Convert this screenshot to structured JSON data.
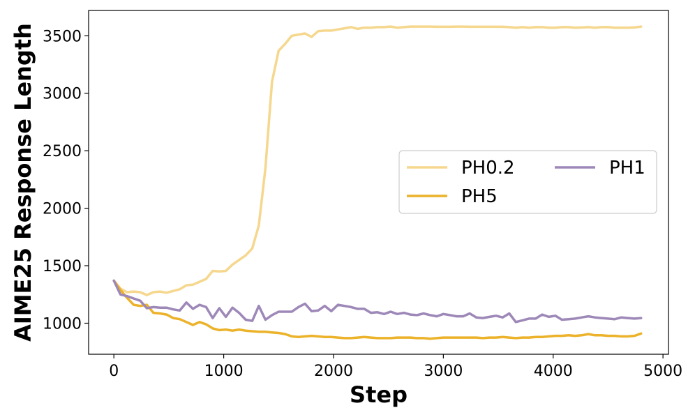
{
  "chart_data": {
    "type": "line",
    "title": "",
    "xlabel": "Step",
    "ylabel": "AIME25 Response Length",
    "xlim": [
      -230,
      5050
    ],
    "ylim": [
      730,
      3720
    ],
    "x_ticks": [
      0,
      1000,
      2000,
      3000,
      4000,
      5000
    ],
    "y_ticks": [
      1000,
      1500,
      2000,
      2500,
      3000,
      3500
    ],
    "grid": false,
    "legend": {
      "placement": "center-right",
      "columns": 2
    },
    "series": [
      {
        "name": "PH0.2",
        "color": "#f5d78e",
        "x": [
          0,
          60,
          120,
          180,
          240,
          300,
          360,
          420,
          480,
          540,
          600,
          660,
          720,
          780,
          840,
          900,
          960,
          1020,
          1080,
          1140,
          1200,
          1260,
          1320,
          1380,
          1440,
          1500,
          1560,
          1620,
          1680,
          1740,
          1800,
          1860,
          1920,
          1980,
          2040,
          2100,
          2160,
          2220,
          2280,
          2340,
          2400,
          2460,
          2520,
          2580,
          2640,
          2700,
          2760,
          2820,
          2880,
          2940,
          3000,
          3060,
          3120,
          3180,
          3240,
          3300,
          3360,
          3420,
          3480,
          3540,
          3600,
          3660,
          3720,
          3780,
          3840,
          3900,
          3960,
          4020,
          4080,
          4140,
          4200,
          4260,
          4320,
          4380,
          4440,
          4500,
          4560,
          4620,
          4680,
          4740,
          4800
        ],
        "y": [
          1370,
          1300,
          1270,
          1275,
          1270,
          1245,
          1270,
          1275,
          1265,
          1280,
          1295,
          1330,
          1335,
          1360,
          1385,
          1455,
          1450,
          1455,
          1510,
          1550,
          1590,
          1650,
          1850,
          2350,
          3100,
          3370,
          3430,
          3500,
          3510,
          3520,
          3490,
          3540,
          3545,
          3545,
          3555,
          3565,
          3575,
          3560,
          3570,
          3570,
          3575,
          3575,
          3580,
          3570,
          3575,
          3580,
          3580,
          3580,
          3580,
          3578,
          3578,
          3578,
          3580,
          3580,
          3578,
          3578,
          3578,
          3578,
          3578,
          3578,
          3575,
          3570,
          3575,
          3570,
          3575,
          3575,
          3570,
          3570,
          3575,
          3575,
          3570,
          3572,
          3575,
          3570,
          3575,
          3575,
          3570,
          3570,
          3570,
          3572,
          3580
        ]
      },
      {
        "name": "PH5",
        "color": "#ebb22a",
        "x": [
          0,
          60,
          120,
          180,
          240,
          300,
          360,
          420,
          480,
          540,
          600,
          660,
          720,
          780,
          840,
          900,
          960,
          1020,
          1080,
          1140,
          1200,
          1260,
          1320,
          1380,
          1440,
          1500,
          1560,
          1620,
          1680,
          1740,
          1800,
          1860,
          1920,
          1980,
          2040,
          2100,
          2160,
          2220,
          2280,
          2340,
          2400,
          2460,
          2520,
          2580,
          2640,
          2700,
          2760,
          2820,
          2880,
          2940,
          3000,
          3060,
          3120,
          3180,
          3240,
          3300,
          3360,
          3420,
          3480,
          3540,
          3600,
          3660,
          3720,
          3780,
          3840,
          3900,
          3960,
          4020,
          4080,
          4140,
          4200,
          4260,
          4320,
          4380,
          4440,
          4500,
          4560,
          4620,
          4680,
          4740,
          4800
        ],
        "y": [
          1370,
          1290,
          1220,
          1160,
          1150,
          1160,
          1090,
          1085,
          1075,
          1045,
          1035,
          1010,
          985,
          1010,
          990,
          955,
          940,
          945,
          935,
          945,
          935,
          930,
          925,
          925,
          920,
          915,
          905,
          885,
          880,
          885,
          890,
          885,
          880,
          880,
          875,
          870,
          870,
          875,
          880,
          875,
          870,
          870,
          870,
          875,
          875,
          875,
          870,
          870,
          865,
          870,
          875,
          875,
          875,
          875,
          875,
          875,
          870,
          875,
          875,
          880,
          875,
          870,
          875,
          875,
          880,
          880,
          885,
          890,
          890,
          895,
          890,
          895,
          905,
          895,
          895,
          890,
          890,
          885,
          885,
          890,
          910
        ]
      },
      {
        "name": "PH1",
        "color": "#9d88b8",
        "x": [
          0,
          60,
          120,
          180,
          240,
          300,
          360,
          420,
          480,
          540,
          600,
          660,
          720,
          780,
          840,
          900,
          960,
          1020,
          1080,
          1140,
          1200,
          1260,
          1320,
          1380,
          1440,
          1500,
          1560,
          1620,
          1680,
          1740,
          1800,
          1860,
          1920,
          1980,
          2040,
          2100,
          2160,
          2220,
          2280,
          2340,
          2400,
          2460,
          2520,
          2580,
          2640,
          2700,
          2760,
          2820,
          2880,
          2940,
          3000,
          3060,
          3120,
          3180,
          3240,
          3300,
          3360,
          3420,
          3480,
          3540,
          3600,
          3660,
          3720,
          3780,
          3840,
          3900,
          3960,
          4020,
          4080,
          4140,
          4200,
          4260,
          4320,
          4380,
          4440,
          4500,
          4560,
          4620,
          4680,
          4740,
          4800
        ],
        "y": [
          1370,
          1250,
          1235,
          1215,
          1195,
          1130,
          1140,
          1135,
          1135,
          1120,
          1110,
          1180,
          1125,
          1160,
          1140,
          1045,
          1130,
          1055,
          1135,
          1090,
          1030,
          1020,
          1150,
          1030,
          1070,
          1100,
          1100,
          1100,
          1140,
          1170,
          1105,
          1110,
          1150,
          1105,
          1160,
          1150,
          1140,
          1125,
          1125,
          1090,
          1095,
          1080,
          1100,
          1080,
          1090,
          1075,
          1070,
          1085,
          1070,
          1060,
          1080,
          1070,
          1060,
          1060,
          1085,
          1050,
          1045,
          1055,
          1065,
          1050,
          1085,
          1010,
          1025,
          1040,
          1040,
          1075,
          1055,
          1065,
          1030,
          1035,
          1040,
          1050,
          1060,
          1050,
          1045,
          1040,
          1035,
          1050,
          1045,
          1040,
          1045
        ]
      }
    ]
  }
}
